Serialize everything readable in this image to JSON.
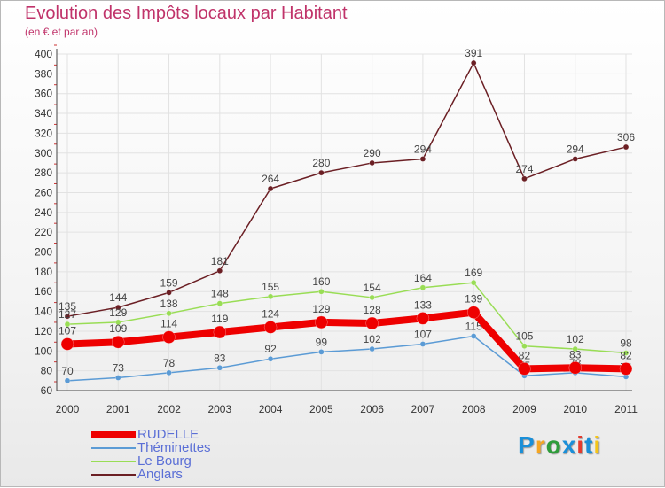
{
  "chart_data": {
    "type": "line",
    "title": "Evolution des Impôts locaux par Habitant",
    "subtitle": "(en € et par an)",
    "x": [
      "2000",
      "2001",
      "2002",
      "2003",
      "2004",
      "2005",
      "2006",
      "2007",
      "2008",
      "2009",
      "2010",
      "2011"
    ],
    "ylim": [
      60,
      400
    ],
    "yticks": [
      60,
      80,
      100,
      120,
      140,
      160,
      180,
      200,
      220,
      240,
      260,
      280,
      300,
      320,
      340,
      360,
      380,
      400
    ],
    "series": [
      {
        "name": "Anglars",
        "color": "#6b1f24",
        "values": [
          135,
          144,
          159,
          181,
          264,
          280,
          290,
          294,
          391,
          274,
          294,
          306
        ]
      },
      {
        "name": "Le Bourg",
        "color": "#99dd55",
        "values": [
          127,
          129,
          138,
          148,
          155,
          160,
          154,
          164,
          169,
          105,
          102,
          98
        ]
      },
      {
        "name": "Théminettes",
        "color": "#5b9bd5",
        "values": [
          70,
          73,
          78,
          83,
          92,
          99,
          102,
          107,
          115,
          75,
          78,
          74
        ]
      },
      {
        "name": "RUDELLE",
        "color": "#ee0000",
        "values": [
          107,
          109,
          114,
          119,
          124,
          129,
          128,
          133,
          139,
          82,
          83,
          82
        ]
      }
    ],
    "legend": [
      "RUDELLE",
      "Théminettes",
      "Le Bourg",
      "Anglars"
    ]
  },
  "brand": {
    "letters": [
      "P",
      "r",
      "o",
      "x",
      "i",
      "t",
      "i"
    ],
    "colors": [
      "#1a8fd8",
      "#f5a623",
      "#2e9c3a",
      "#1a8fd8",
      "#e33b2f",
      "#1a8fd8",
      "#f5c518"
    ]
  }
}
